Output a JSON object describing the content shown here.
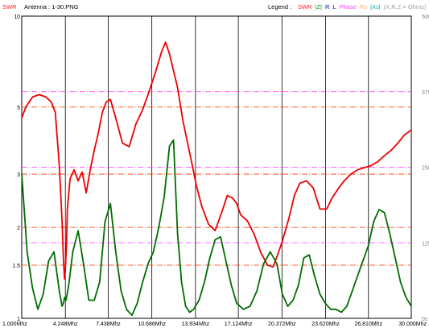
{
  "header": {
    "swr_label": "SWR",
    "antenna_label": "Antenna : 1-30.PNG",
    "legend_label": "Legend :",
    "legend_items": [
      {
        "text": "SWR",
        "color": "#ff2020"
      },
      {
        "text": "|Z|",
        "color": "#00a000"
      },
      {
        "text": "R",
        "color": "#0000cc"
      },
      {
        "text": "L",
        "color": "#0000cc"
      },
      {
        "text": "Phase",
        "color": "#ff40ff"
      },
      {
        "text": "Rs",
        "color": "#ffaa66"
      },
      {
        "text": "|Xs|",
        "color": "#00b0b0"
      },
      {
        "text": "(X,R,Z = Ohms)",
        "color": "#a0a0a0"
      }
    ]
  },
  "colors": {
    "swr": "#ee0000",
    "z": "#006e00",
    "grid": "#000000",
    "phase_ref": "#ff33ff",
    "swr_ref": "#ff3300",
    "axis_text": "#000000"
  },
  "chart_data": {
    "type": "line",
    "title": "",
    "xlabel": "",
    "ylabel_left": "SWR",
    "ylabel_right": "",
    "x_unit": "Mhz",
    "xlim": [
      1.0,
      30.0
    ],
    "x_ticks": [
      1.0,
      4.248,
      7.438,
      10.686,
      13.934,
      17.124,
      20.372,
      23.62,
      26.81,
      30.0
    ],
    "x_tick_labels": [
      "1.000Mhz",
      "4.248Mhz",
      "7.438Mhz",
      "10.686Mhz",
      "13.934Mhz",
      "17.124Mhz",
      "20.372Mhz",
      "23.620Mhz",
      "26.810Mhz",
      "30.000Mhz"
    ],
    "left_axis": {
      "scale": "log",
      "ylim": [
        1,
        10
      ],
      "ticks": [
        10,
        5,
        3,
        2,
        1.5,
        1
      ],
      "tick_labels": [
        "10",
        "5",
        "3",
        "2",
        "1.5",
        "1"
      ]
    },
    "right_axis": {
      "scale": "linear",
      "ylim": [
        0,
        500
      ],
      "ticks": [
        500,
        375,
        250,
        125,
        0
      ],
      "tick_labels": [
        "500",
        "375",
        "250",
        "125",
        "0s"
      ]
    },
    "reference_lines": {
      "swr": [
        5,
        3,
        2,
        1.5
      ],
      "impedance": [
        375,
        250,
        125
      ]
    },
    "grid": true,
    "legend_position": "top",
    "series": [
      {
        "name": "SWR",
        "axis": "left",
        "x": [
          1.0,
          1.3,
          1.8,
          2.3,
          2.8,
          3.2,
          3.5,
          3.8,
          4.0,
          4.1,
          4.18,
          4.25,
          4.32,
          4.4,
          4.6,
          4.9,
          5.2,
          5.5,
          5.8,
          6.1,
          6.4,
          6.7,
          7.0,
          7.3,
          7.6,
          8.0,
          8.5,
          9.0,
          9.5,
          10.0,
          10.4,
          10.9,
          11.4,
          11.7,
          12.0,
          12.6,
          13.0,
          13.4,
          13.7,
          14.0,
          14.4,
          14.9,
          15.4,
          15.9,
          16.3,
          16.7,
          17.0,
          17.3,
          17.8,
          18.3,
          18.8,
          19.3,
          19.7,
          20.0,
          20.4,
          20.9,
          21.3,
          21.7,
          22.2,
          22.7,
          23.2,
          23.7,
          24.1,
          24.6,
          25.0,
          25.5,
          26.0,
          26.5,
          27.0,
          27.5,
          28.0,
          28.5,
          29.0,
          29.5,
          30.0
        ],
        "values": [
          4.6,
          5.0,
          5.4,
          5.5,
          5.4,
          5.2,
          4.8,
          3.2,
          2.1,
          1.6,
          1.35,
          1.45,
          1.7,
          2.3,
          2.9,
          3.1,
          2.85,
          3.05,
          2.6,
          3.1,
          3.6,
          4.1,
          4.8,
          5.2,
          5.3,
          4.6,
          3.8,
          3.7,
          4.4,
          4.9,
          5.5,
          6.4,
          7.6,
          8.2,
          7.5,
          5.8,
          4.5,
          3.7,
          3.2,
          2.75,
          2.35,
          2.05,
          1.95,
          2.25,
          2.55,
          2.5,
          2.4,
          2.2,
          2.1,
          1.9,
          1.65,
          1.5,
          1.48,
          1.6,
          1.8,
          2.15,
          2.55,
          2.8,
          2.85,
          2.7,
          2.3,
          2.3,
          2.5,
          2.7,
          2.85,
          3.0,
          3.1,
          3.15,
          3.2,
          3.3,
          3.45,
          3.6,
          3.8,
          4.05,
          4.2
        ]
      },
      {
        "name": "|Z|",
        "axis": "right",
        "x": [
          1.0,
          1.4,
          1.8,
          2.2,
          2.6,
          3.0,
          3.4,
          3.8,
          4.0,
          4.1,
          4.2,
          4.3,
          4.5,
          4.8,
          5.2,
          5.6,
          6.0,
          6.4,
          6.8,
          7.2,
          7.6,
          8.0,
          8.4,
          8.8,
          9.2,
          9.6,
          10.0,
          10.4,
          10.8,
          11.2,
          11.6,
          12.0,
          12.3,
          12.6,
          12.9,
          13.2,
          13.5,
          13.8,
          14.2,
          14.6,
          15.0,
          15.4,
          15.8,
          16.2,
          16.6,
          17.0,
          17.5,
          18.0,
          18.5,
          19.0,
          19.5,
          20.0,
          20.4,
          20.8,
          21.2,
          21.6,
          22.0,
          22.4,
          22.8,
          23.2,
          23.6,
          24.0,
          24.4,
          24.8,
          25.2,
          25.6,
          26.0,
          26.4,
          26.8,
          27.2,
          27.6,
          28.0,
          28.4,
          28.8,
          29.2,
          29.6,
          30.0
        ],
        "values": [
          240,
          110,
          50,
          15,
          40,
          95,
          110,
          45,
          20,
          25,
          35,
          30,
          55,
          110,
          145,
          90,
          30,
          30,
          60,
          160,
          190,
          110,
          45,
          15,
          5,
          25,
          60,
          90,
          110,
          150,
          200,
          285,
          295,
          140,
          60,
          20,
          10,
          15,
          30,
          60,
          100,
          130,
          135,
          95,
          55,
          25,
          15,
          20,
          45,
          90,
          110,
          90,
          40,
          20,
          30,
          55,
          100,
          105,
          70,
          40,
          25,
          15,
          15,
          10,
          20,
          45,
          70,
          95,
          120,
          160,
          180,
          175,
          140,
          100,
          60,
          35,
          20
        ]
      }
    ]
  }
}
